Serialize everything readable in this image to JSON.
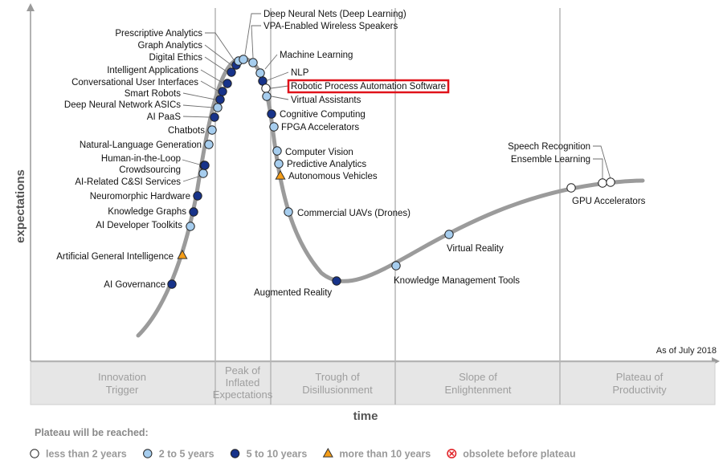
{
  "chart_data": {
    "type": "scatter",
    "title": "",
    "xlabel": "time",
    "ylabel": "expectations",
    "as_of": "As of July 2018",
    "phases": [
      {
        "lines": [
          "Innovation",
          "Trigger"
        ]
      },
      {
        "lines": [
          "Peak of",
          "Inflated",
          "Expectations"
        ]
      },
      {
        "lines": [
          "Trough of",
          "Disillusionment"
        ]
      },
      {
        "lines": [
          "Slope of",
          "Enlightenment"
        ]
      },
      {
        "lines": [
          "Plateau of",
          "Productivity"
        ]
      }
    ],
    "legend": {
      "title": "Plateau will be reached:",
      "items": [
        {
          "category": "lt2",
          "label": "less than 2 years"
        },
        {
          "category": "2to5",
          "label": "2 to 5 years"
        },
        {
          "category": "5to10",
          "label": "5 to 10 years"
        },
        {
          "category": "gt10",
          "label": "more than 10 years"
        },
        {
          "category": "obsolete",
          "label": "obsolete before plateau"
        }
      ]
    },
    "colors": {
      "lt2": "#ffffff",
      "2to5": "#a6cdee",
      "5to10": "#17338a",
      "gt10": "#f59d17",
      "obsolete": "#e2262b",
      "curve": "#9b9b9b",
      "phase_band": "#e6e6e6",
      "highlight": "#e0121a"
    },
    "technologies": [
      {
        "name": "AI Governance",
        "category": "5to10"
      },
      {
        "name": "Artificial General Intelligence",
        "category": "gt10"
      },
      {
        "name": "AI Developer Toolkits",
        "category": "2to5"
      },
      {
        "name": "Knowledge Graphs",
        "category": "5to10"
      },
      {
        "name": "Neuromorphic Hardware",
        "category": "5to10"
      },
      {
        "name": "AI-Related C&SI Services",
        "category": "2to5"
      },
      {
        "name": "Crowdsourcing",
        "category": "5to10"
      },
      {
        "name": "Human-in-the-Loop",
        "category": "5to10"
      },
      {
        "name": "Natural-Language Generation",
        "category": "2to5"
      },
      {
        "name": "Chatbots",
        "category": "2to5"
      },
      {
        "name": "AI PaaS",
        "category": "5to10"
      },
      {
        "name": "Deep Neural Network ASICs",
        "category": "2to5"
      },
      {
        "name": "Smart Robots",
        "category": "5to10"
      },
      {
        "name": "Conversational User Interfaces",
        "category": "5to10"
      },
      {
        "name": "Intelligent Applications",
        "category": "5to10"
      },
      {
        "name": "Digital Ethics",
        "category": "5to10"
      },
      {
        "name": "Graph Analytics",
        "category": "5to10"
      },
      {
        "name": "Prescriptive Analytics",
        "category": "2to5"
      },
      {
        "name": "Deep Neural Nets (Deep Learning)",
        "category": "2to5"
      },
      {
        "name": "VPA-Enabled Wireless Speakers",
        "category": "2to5"
      },
      {
        "name": "Machine Learning",
        "category": "2to5"
      },
      {
        "name": "NLP",
        "category": "5to10"
      },
      {
        "name": "Robotic Process Automation Software",
        "category": "lt2",
        "highlighted": true
      },
      {
        "name": "Virtual Assistants",
        "category": "2to5"
      },
      {
        "name": "Cognitive Computing",
        "category": "5to10"
      },
      {
        "name": "FPGA Accelerators",
        "category": "2to5"
      },
      {
        "name": "Computer Vision",
        "category": "2to5"
      },
      {
        "name": "Predictive Analytics",
        "category": "2to5"
      },
      {
        "name": "Autonomous Vehicles",
        "category": "gt10"
      },
      {
        "name": "Commercial UAVs (Drones)",
        "category": "2to5"
      },
      {
        "name": "Augmented Reality",
        "category": "5to10"
      },
      {
        "name": "Knowledge Management Tools",
        "category": "2to5"
      },
      {
        "name": "Virtual Reality",
        "category": "2to5"
      },
      {
        "name": "GPU Accelerators",
        "category": "lt2"
      },
      {
        "name": "Ensemble Learning",
        "category": "lt2"
      },
      {
        "name": "Speech Recognition",
        "category": "lt2"
      }
    ]
  }
}
